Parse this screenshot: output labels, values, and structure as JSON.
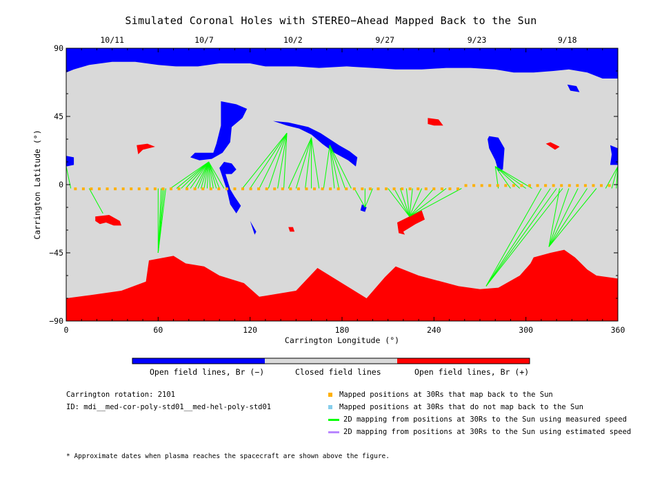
{
  "title": "Simulated Coronal Holes with STEREO−Ahead Mapped Back to the Sun",
  "chart_data": {
    "type": "heatmap",
    "xlabel": "Carrington Longitude (°)",
    "ylabel": "Carrington Latitude (°)",
    "xlim": [
      0,
      360
    ],
    "ylim": [
      -90,
      90
    ],
    "xticks": [
      0,
      60,
      120,
      180,
      240,
      300,
      360
    ],
    "yticks": [
      -90,
      -45,
      0,
      45,
      90
    ],
    "xtick_labels": [
      "0",
      "60",
      "120",
      "180",
      "240",
      "300",
      "360"
    ],
    "ytick_labels": [
      "−90",
      "−45",
      "0",
      "45",
      "90"
    ],
    "top_date_labels": [
      {
        "label": "10/11",
        "lon": 30
      },
      {
        "label": "10/7",
        "lon": 90
      },
      {
        "label": "10/2",
        "lon": 148
      },
      {
        "label": "9/27",
        "lon": 208
      },
      {
        "label": "9/23",
        "lon": 268
      },
      {
        "label": "9/18",
        "lon": 327
      }
    ],
    "categories": [
      "Open field lines, Br (−)",
      "Closed field lines",
      "Open field lines, Br (+)"
    ],
    "colors": {
      "negative": "#0000ff",
      "closed": "#d9d9d9",
      "positive": "#ff0000",
      "mapped": "#ffb000",
      "unmapped": "#87ceeb",
      "measured": "#00ff00",
      "estimated": "#b987ff"
    },
    "regions": [
      {
        "polarity": "negative",
        "points": [
          [
            0,
            90
          ],
          [
            360,
            90
          ],
          [
            360,
            70
          ],
          [
            350,
            70
          ],
          [
            340,
            74
          ],
          [
            328,
            76
          ],
          [
            318,
            75
          ],
          [
            305,
            74
          ],
          [
            292,
            74
          ],
          [
            280,
            76
          ],
          [
            264,
            77
          ],
          [
            248,
            77
          ],
          [
            232,
            76
          ],
          [
            215,
            76
          ],
          [
            200,
            77
          ],
          [
            183,
            78
          ],
          [
            165,
            77
          ],
          [
            150,
            78
          ],
          [
            130,
            78
          ],
          [
            120,
            80
          ],
          [
            100,
            80
          ],
          [
            86,
            78
          ],
          [
            72,
            78
          ],
          [
            60,
            79
          ],
          [
            45,
            81
          ],
          [
            30,
            81
          ],
          [
            15,
            79
          ],
          [
            5,
            76
          ],
          [
            0,
            74
          ]
        ]
      },
      {
        "polarity": "negative",
        "points": [
          [
            327,
            66
          ],
          [
            333,
            65
          ],
          [
            335,
            61
          ],
          [
            329,
            62
          ]
        ]
      },
      {
        "polarity": "negative",
        "points": [
          [
            101,
            55
          ],
          [
            111,
            53
          ],
          [
            118,
            50
          ],
          [
            115,
            44
          ],
          [
            108,
            38
          ],
          [
            107,
            28
          ],
          [
            102,
            21
          ],
          [
            95,
            17
          ],
          [
            87,
            16
          ],
          [
            81,
            18
          ],
          [
            84,
            21
          ],
          [
            96,
            21
          ],
          [
            98,
            27
          ],
          [
            101,
            39
          ]
        ]
      },
      {
        "polarity": "negative",
        "points": [
          [
            103,
            15
          ],
          [
            108,
            14
          ],
          [
            111,
            10
          ],
          [
            108,
            7
          ],
          [
            104,
            7
          ],
          [
            107,
            -3
          ],
          [
            110,
            -8
          ],
          [
            114,
            -14
          ],
          [
            111,
            -19
          ],
          [
            107,
            -13
          ],
          [
            105,
            -4
          ],
          [
            102,
            5
          ],
          [
            100,
            11
          ]
        ]
      },
      {
        "polarity": "negative",
        "points": [
          [
            120,
            -24
          ],
          [
            124,
            -31
          ],
          [
            123,
            -33
          ],
          [
            121,
            -27
          ]
        ]
      },
      {
        "polarity": "negative",
        "points": [
          [
            135,
            42
          ],
          [
            145,
            41
          ],
          [
            158,
            38
          ],
          [
            166,
            34
          ],
          [
            172,
            30
          ],
          [
            178,
            26
          ],
          [
            185,
            22
          ],
          [
            190,
            18
          ],
          [
            189,
            12
          ],
          [
            184,
            16
          ],
          [
            175,
            21
          ],
          [
            167,
            27
          ],
          [
            160,
            33
          ],
          [
            152,
            37
          ],
          [
            144,
            39
          ]
        ]
      },
      {
        "polarity": "negative",
        "points": [
          [
            193,
            -13
          ],
          [
            196,
            -15
          ],
          [
            195,
            -18
          ],
          [
            192,
            -17
          ]
        ]
      },
      {
        "polarity": "negative",
        "points": [
          [
            276,
            32
          ],
          [
            282,
            31
          ],
          [
            286,
            24
          ],
          [
            285,
            10
          ],
          [
            282,
            9
          ],
          [
            280,
            16
          ],
          [
            276,
            24
          ],
          [
            275,
            30
          ]
        ]
      },
      {
        "polarity": "negative",
        "points": [
          [
            355,
            26
          ],
          [
            360,
            24
          ],
          [
            360,
            13
          ],
          [
            355,
            13
          ],
          [
            356,
            20
          ]
        ]
      },
      {
        "polarity": "negative",
        "points": [
          [
            0,
            19
          ],
          [
            5,
            18
          ],
          [
            5,
            13
          ],
          [
            0,
            12
          ]
        ]
      },
      {
        "polarity": "positive",
        "points": [
          [
            236,
            44
          ],
          [
            243,
            43
          ],
          [
            246,
            39
          ],
          [
            240,
            39
          ],
          [
            236,
            40
          ]
        ]
      },
      {
        "polarity": "positive",
        "points": [
          [
            46,
            26
          ],
          [
            53,
            27
          ],
          [
            58,
            25
          ],
          [
            50,
            23
          ],
          [
            47,
            20
          ]
        ]
      },
      {
        "polarity": "positive",
        "points": [
          [
            316,
            28
          ],
          [
            322,
            25
          ],
          [
            319,
            23
          ],
          [
            313,
            27
          ]
        ]
      },
      {
        "polarity": "positive",
        "points": [
          [
            19,
            -21
          ],
          [
            28,
            -20
          ],
          [
            35,
            -24
          ],
          [
            36,
            -27
          ],
          [
            31,
            -27
          ],
          [
            26,
            -25
          ],
          [
            22,
            -26
          ],
          [
            19,
            -24
          ]
        ]
      },
      {
        "polarity": "positive",
        "points": [
          [
            216,
            -25
          ],
          [
            228,
            -19
          ],
          [
            232,
            -17
          ],
          [
            234,
            -23
          ],
          [
            228,
            -26
          ],
          [
            220,
            -31
          ],
          [
            221,
            -33
          ],
          [
            217,
            -32
          ]
        ]
      },
      {
        "polarity": "positive",
        "points": [
          [
            145,
            -28
          ],
          [
            148,
            -28
          ],
          [
            149,
            -31
          ],
          [
            146,
            -31
          ]
        ]
      },
      {
        "polarity": "positive",
        "points": [
          [
            0,
            -90
          ],
          [
            360,
            -90
          ],
          [
            360,
            -88
          ],
          [
            305,
            -87
          ],
          [
            250,
            -84
          ],
          [
            200,
            -87
          ],
          [
            150,
            -88
          ],
          [
            90,
            -86
          ],
          [
            40,
            -86
          ],
          [
            0,
            -88
          ]
        ]
      },
      {
        "polarity": "positive",
        "points": [
          [
            0,
            -75
          ],
          [
            15,
            -73
          ],
          [
            36,
            -70
          ],
          [
            52,
            -64
          ],
          [
            54,
            -50
          ],
          [
            70,
            -47
          ],
          [
            78,
            -52
          ],
          [
            90,
            -54
          ],
          [
            100,
            -60
          ],
          [
            116,
            -65
          ],
          [
            126,
            -74
          ],
          [
            150,
            -70
          ],
          [
            164,
            -55
          ],
          [
            180,
            -65
          ],
          [
            196,
            -75
          ],
          [
            208,
            -61
          ],
          [
            215,
            -54
          ],
          [
            230,
            -60
          ],
          [
            256,
            -67
          ],
          [
            270,
            -69
          ],
          [
            282,
            -68
          ],
          [
            296,
            -60
          ],
          [
            303,
            -52
          ],
          [
            305,
            -48
          ],
          [
            316,
            -45
          ],
          [
            325,
            -43
          ],
          [
            332,
            -48
          ],
          [
            340,
            -56
          ],
          [
            346,
            -60
          ],
          [
            360,
            -62
          ],
          [
            360,
            -90
          ],
          [
            0,
            -90
          ]
        ]
      }
    ],
    "footpoints": [
      {
        "lon": 0,
        "lat": 12
      },
      {
        "lon": 60,
        "lat": -45
      },
      {
        "lon": 93,
        "lat": 15
      },
      {
        "lon": 144,
        "lat": 34
      },
      {
        "lon": 160,
        "lat": 31
      },
      {
        "lon": 172,
        "lat": 26
      },
      {
        "lon": 195,
        "lat": -15
      },
      {
        "lon": 224,
        "lat": -21
      },
      {
        "lon": 280,
        "lat": 12
      },
      {
        "lon": 360,
        "lat": 12
      },
      {
        "lon": 274,
        "lat": -67
      },
      {
        "lon": 315,
        "lat": -41
      },
      {
        "lon": 24,
        "lat": -19
      }
    ]
  },
  "colorbar": {
    "negative_label": "Open field lines, Br (−)",
    "closed_label": "Closed field lines",
    "positive_label": "Open field lines, Br (+)"
  },
  "info": {
    "rotation": "Carrington rotation: 2101",
    "id": "ID: mdi__med-cor-poly-std01__med-hel-poly-std01"
  },
  "legend": [
    {
      "kind": "square",
      "color": "#ffb000",
      "label": "Mapped positions at 30Rs that map back to the Sun"
    },
    {
      "kind": "square",
      "color": "#87ceeb",
      "label": "Mapped positions at 30Rs that do not map back to the Sun"
    },
    {
      "kind": "line",
      "color": "#00ff00",
      "label": "2D mapping from positions at 30Rs to the Sun using measured speed"
    },
    {
      "kind": "line",
      "color": "#b987ff",
      "label": "2D mapping from positions at 30Rs to the Sun using estimated speed"
    }
  ],
  "footnote": "* Approximate dates when plasma reaches the spacecraft are shown above the figure."
}
